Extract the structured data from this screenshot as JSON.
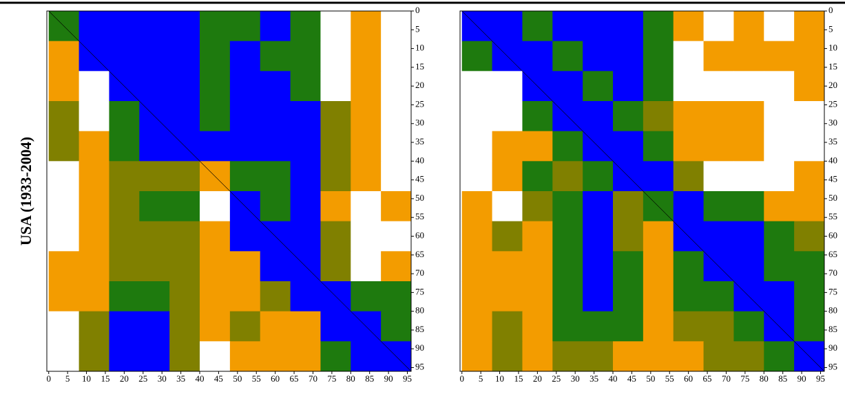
{
  "chart_data": [
    {
      "type": "heatmap",
      "ylabel": "USA (1933-2004)",
      "xlim": [
        -0.5,
        96
      ],
      "ylim": [
        0,
        96
      ],
      "y_inverted": true,
      "xticks": [
        0,
        5,
        10,
        15,
        20,
        25,
        30,
        35,
        40,
        45,
        50,
        55,
        60,
        65,
        70,
        75,
        80,
        85,
        90,
        95
      ],
      "yticks": [
        0,
        5,
        10,
        15,
        20,
        25,
        30,
        35,
        40,
        45,
        50,
        55,
        60,
        65,
        70,
        75,
        80,
        85,
        90,
        95
      ],
      "xbins": [
        0,
        8,
        16,
        24,
        32,
        40,
        48,
        56,
        64,
        72,
        80,
        88,
        96
      ],
      "ybins": [
        0,
        8,
        16,
        24,
        32,
        40,
        48,
        56,
        64,
        72,
        80,
        88,
        96
      ],
      "colors": [
        "#ffffff",
        "#f39c00",
        "#808000",
        "#1e7a0e",
        "#0000ff"
      ],
      "z": [
        [
          3,
          4,
          4,
          4,
          4,
          3,
          3,
          4,
          3,
          0,
          1,
          0
        ],
        [
          1,
          4,
          4,
          4,
          4,
          3,
          4,
          3,
          3,
          0,
          1,
          0
        ],
        [
          1,
          0,
          4,
          4,
          4,
          3,
          4,
          4,
          3,
          0,
          1,
          0
        ],
        [
          2,
          0,
          3,
          4,
          4,
          3,
          4,
          4,
          4,
          2,
          1,
          0
        ],
        [
          2,
          1,
          3,
          4,
          4,
          4,
          4,
          4,
          4,
          2,
          1,
          0
        ],
        [
          0,
          1,
          2,
          2,
          2,
          1,
          3,
          3,
          4,
          2,
          1,
          0
        ],
        [
          0,
          1,
          2,
          3,
          3,
          0,
          4,
          3,
          4,
          1,
          0,
          1
        ],
        [
          0,
          1,
          2,
          2,
          2,
          1,
          4,
          4,
          4,
          2,
          0,
          0
        ],
        [
          1,
          1,
          2,
          2,
          2,
          1,
          1,
          4,
          4,
          2,
          0,
          1
        ],
        [
          1,
          1,
          3,
          3,
          2,
          1,
          1,
          2,
          4,
          4,
          3,
          3
        ],
        [
          0,
          2,
          4,
          4,
          2,
          1,
          2,
          1,
          1,
          4,
          4,
          3
        ],
        [
          0,
          2,
          4,
          4,
          2,
          0,
          1,
          1,
          1,
          3,
          4,
          4
        ]
      ]
    },
    {
      "type": "heatmap",
      "xlim": [
        -0.5,
        96
      ],
      "ylim": [
        0,
        96
      ],
      "y_inverted": true,
      "xticks": [
        0,
        5,
        10,
        15,
        20,
        25,
        30,
        35,
        40,
        45,
        50,
        55,
        60,
        65,
        70,
        75,
        80,
        85,
        90,
        95
      ],
      "yticks": [
        0,
        5,
        10,
        15,
        20,
        25,
        30,
        35,
        40,
        45,
        50,
        55,
        60,
        65,
        70,
        75,
        80,
        85,
        90,
        95
      ],
      "xbins": [
        0,
        8,
        16,
        24,
        32,
        40,
        48,
        56,
        64,
        72,
        80,
        88,
        96
      ],
      "ybins": [
        0,
        8,
        16,
        24,
        32,
        40,
        48,
        56,
        64,
        72,
        80,
        88,
        96
      ],
      "colors": [
        "#ffffff",
        "#f39c00",
        "#808000",
        "#1e7a0e",
        "#0000ff"
      ],
      "z": [
        [
          4,
          4,
          3,
          4,
          4,
          4,
          3,
          1,
          0,
          1,
          0,
          1
        ],
        [
          3,
          4,
          4,
          3,
          4,
          4,
          3,
          0,
          1,
          1,
          1,
          1
        ],
        [
          0,
          0,
          4,
          4,
          3,
          4,
          3,
          0,
          0,
          0,
          0,
          1
        ],
        [
          0,
          0,
          3,
          4,
          4,
          3,
          2,
          1,
          1,
          1,
          0,
          0
        ],
        [
          0,
          1,
          1,
          3,
          4,
          4,
          3,
          1,
          1,
          1,
          0,
          0
        ],
        [
          0,
          1,
          3,
          2,
          3,
          4,
          4,
          2,
          0,
          0,
          0,
          1
        ],
        [
          1,
          0,
          2,
          3,
          4,
          2,
          3,
          4,
          3,
          3,
          1,
          1
        ],
        [
          1,
          2,
          1,
          3,
          4,
          2,
          1,
          4,
          4,
          4,
          3,
          2
        ],
        [
          1,
          1,
          1,
          3,
          4,
          3,
          1,
          3,
          4,
          4,
          3,
          3
        ],
        [
          1,
          1,
          1,
          3,
          4,
          3,
          1,
          3,
          3,
          4,
          4,
          3
        ],
        [
          1,
          2,
          1,
          3,
          3,
          3,
          1,
          2,
          2,
          3,
          4,
          3
        ],
        [
          1,
          2,
          1,
          2,
          2,
          1,
          1,
          1,
          2,
          2,
          3,
          4
        ]
      ]
    }
  ]
}
